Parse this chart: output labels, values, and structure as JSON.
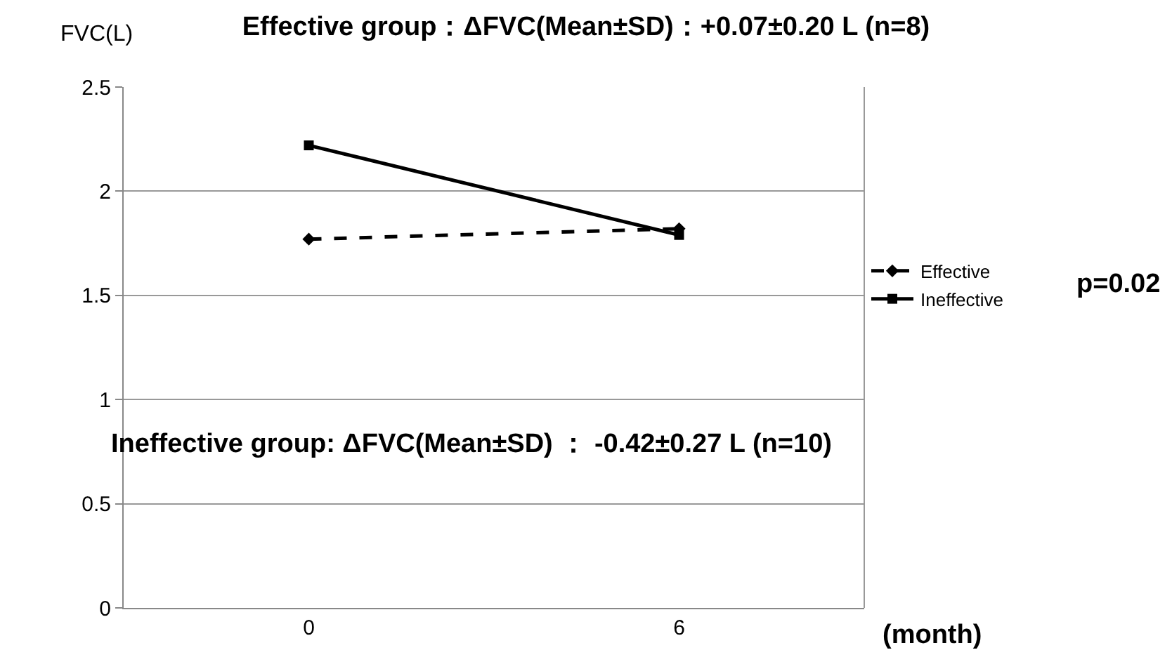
{
  "chart_data": {
    "type": "line",
    "title": "Effective group：ΔFVC(Mean±SD)：+0.07±0.20 L (n=8)",
    "ylabel": "FVC(L)",
    "xlabel": "(month)",
    "categories": [
      "0",
      "6"
    ],
    "series": [
      {
        "name": "Effective",
        "color": "#000000",
        "values": [
          1.77,
          1.82
        ],
        "marker": "diamond",
        "line_style": "dashed"
      },
      {
        "name": "Ineffective",
        "color": "#000000",
        "values": [
          2.22,
          1.79
        ],
        "marker": "square",
        "line_style": "solid"
      }
    ],
    "ylim": [
      0,
      2.5
    ],
    "yticks": [
      0,
      0.5,
      1,
      1.5,
      2,
      2.5
    ],
    "grid": "y",
    "legend": "right",
    "annotations": [
      "Ineffective group: ΔFVC(Mean±SD) ： -0.42±0.27 L (n=10)",
      "p=0.02"
    ]
  }
}
